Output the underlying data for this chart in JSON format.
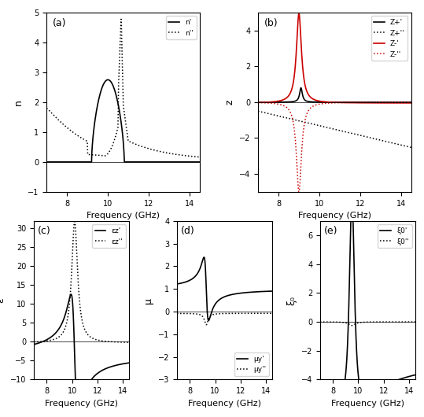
{
  "freq_min": 7.0,
  "freq_max": 14.5,
  "freq_points": 1000,
  "panel_labels": [
    "(a)",
    "(b)",
    "(c)",
    "(d)",
    "(e)"
  ],
  "xlabel": "Frequency (GHz)",
  "ylabel_a": "n",
  "ylabel_b": "z",
  "ylabel_c": "ε",
  "ylabel_d": "μ",
  "ylabel_e": "ξ₀",
  "legend_a": [
    "n'",
    "n''"
  ],
  "legend_b": [
    "Z+'",
    "Z+''",
    "Z-'",
    "Z-''"
  ],
  "legend_c": [
    "εz'",
    "εz''"
  ],
  "legend_d": [
    "μy'",
    "μy''"
  ],
  "legend_e": [
    "ξ0'",
    "ξ0''"
  ],
  "color_black": "#000000",
  "color_red": "#cc0000",
  "ylim_a": [
    -1,
    5
  ],
  "ylim_b": [
    -5,
    5
  ],
  "ylim_c": [
    -10,
    32
  ],
  "ylim_d": [
    -3,
    4
  ],
  "ylim_e": [
    -4,
    7
  ],
  "xticks": [
    8,
    10,
    12,
    14
  ]
}
